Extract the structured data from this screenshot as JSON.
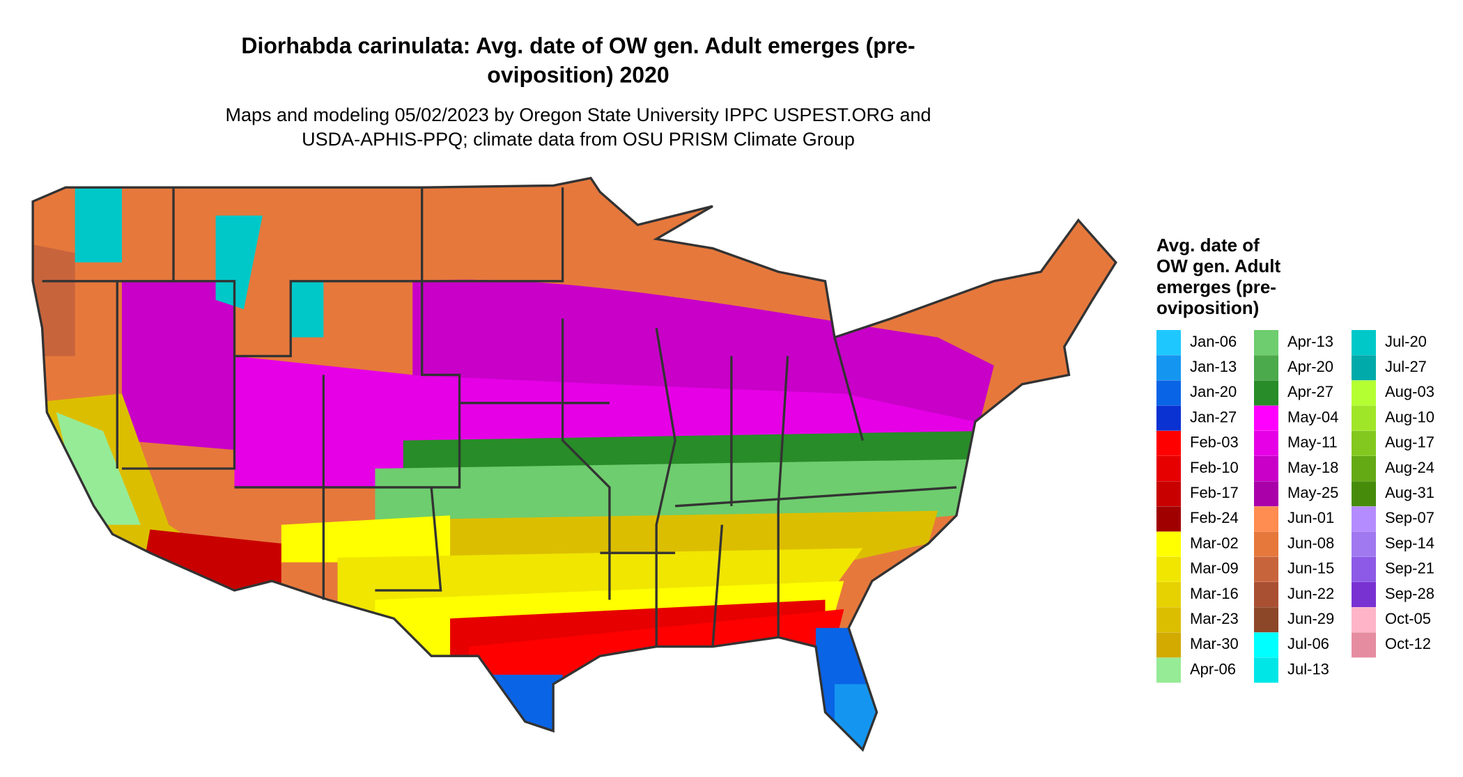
{
  "header": {
    "title": [
      "Diorhabda carinulata: Avg. date of OW gen. Adult emerges (pre-",
      "oviposition) 2020"
    ],
    "subtitle": [
      "Maps and modeling 05/02/2023 by Oregon State University IPPC USPEST.ORG and",
      "USDA-APHIS-PPQ; climate data from OSU PRISM Climate Group"
    ]
  },
  "legend": {
    "title": [
      "Avg. date of",
      "OW gen. Adult",
      "emerges (pre-",
      "oviposition)"
    ],
    "items": [
      {
        "label": "Jan-06",
        "color": "#1ec8ff"
      },
      {
        "label": "Jan-13",
        "color": "#1496f0"
      },
      {
        "label": "Jan-20",
        "color": "#0a64e6"
      },
      {
        "label": "Jan-27",
        "color": "#0a32d2"
      },
      {
        "label": "Feb-03",
        "color": "#ff0000"
      },
      {
        "label": "Feb-10",
        "color": "#e60000"
      },
      {
        "label": "Feb-17",
        "color": "#c80000"
      },
      {
        "label": "Feb-24",
        "color": "#a00000"
      },
      {
        "label": "Mar-02",
        "color": "#ffff00"
      },
      {
        "label": "Mar-09",
        "color": "#f0e600"
      },
      {
        "label": "Mar-16",
        "color": "#e6d200"
      },
      {
        "label": "Mar-23",
        "color": "#dcbe00"
      },
      {
        "label": "Mar-30",
        "color": "#d2aa00"
      },
      {
        "label": "Apr-06",
        "color": "#96eb96"
      },
      {
        "label": "Apr-13",
        "color": "#6ecd6e"
      },
      {
        "label": "Apr-20",
        "color": "#4baa4b"
      },
      {
        "label": "Apr-27",
        "color": "#288c28"
      },
      {
        "label": "May-04",
        "color": "#ff00ff"
      },
      {
        "label": "May-11",
        "color": "#e600e6"
      },
      {
        "label": "May-18",
        "color": "#c800c8"
      },
      {
        "label": "May-25",
        "color": "#aa00aa"
      },
      {
        "label": "Jun-01",
        "color": "#ff8c50"
      },
      {
        "label": "Jun-08",
        "color": "#e6783c"
      },
      {
        "label": "Jun-15",
        "color": "#c8643c"
      },
      {
        "label": "Jun-22",
        "color": "#aa5032"
      },
      {
        "label": "Jun-29",
        "color": "#8c4628"
      },
      {
        "label": "Jul-06",
        "color": "#00ffff"
      },
      {
        "label": "Jul-13",
        "color": "#00e6e6"
      },
      {
        "label": "Jul-20",
        "color": "#00c8c8"
      },
      {
        "label": "Jul-27",
        "color": "#00aaaa"
      },
      {
        "label": "Aug-03",
        "color": "#b4ff32"
      },
      {
        "label": "Aug-10",
        "color": "#a0e628"
      },
      {
        "label": "Aug-17",
        "color": "#82c81e"
      },
      {
        "label": "Aug-24",
        "color": "#64aa14"
      },
      {
        "label": "Aug-31",
        "color": "#468c0a"
      },
      {
        "label": "Sep-07",
        "color": "#b48cff"
      },
      {
        "label": "Sep-14",
        "color": "#a078f0"
      },
      {
        "label": "Sep-21",
        "color": "#8c5ae6"
      },
      {
        "label": "Sep-28",
        "color": "#7832d2"
      },
      {
        "label": "Oct-05",
        "color": "#ffb4c8"
      },
      {
        "label": "Oct-12",
        "color": "#e68ca0"
      }
    ]
  }
}
